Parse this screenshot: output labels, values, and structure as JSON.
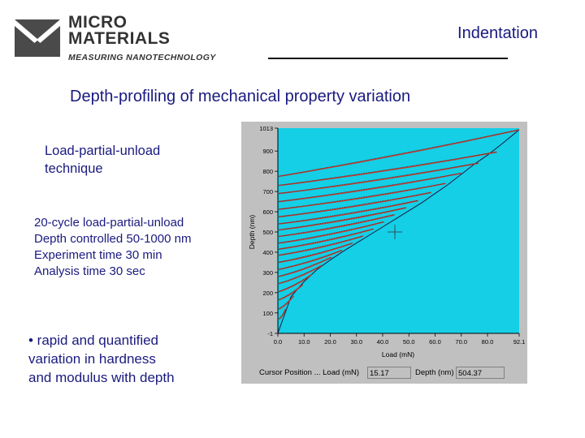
{
  "logo": {
    "line1": "MICRO",
    "line2": "MATERIALS",
    "tagline": "MEASURING NANOTECHNOLOGY"
  },
  "header": {
    "section": "Indentation"
  },
  "title": "Depth-profiling of mechanical property variation",
  "technique": [
    "Load-partial-unload",
    "technique"
  ],
  "params": [
    "20-cycle load-partial-unload",
    "Depth controlled 50-1000 nm",
    "Experiment time 30 min",
    "Analysis time 30 sec"
  ],
  "bullet": [
    "• rapid and quantified",
    "variation in hardness",
    "and modulus with depth"
  ],
  "colors": {
    "text": "#1a1a80",
    "plot_bg": "#14cfe6",
    "curve": "#c0392b",
    "panel": "#c0c0c0"
  },
  "status": {
    "cursor_label": "Cursor Position ... Load (mN)",
    "load_value": "15.17",
    "depth_label": "Depth (nm)",
    "depth_value": "504.37"
  },
  "chart_data": {
    "type": "line",
    "xlabel": "Load (mN)",
    "ylabel": "Depth (nm)",
    "xlim": [
      0.0,
      92.1
    ],
    "ylim": [
      -1,
      1013
    ],
    "x_ticks": [
      "0.0",
      "10.0",
      "20.0",
      "30.0",
      "40.0",
      "50.0",
      "60.0",
      "70.0",
      "80.0",
      "92.1"
    ],
    "y_ticks": [
      "-1",
      "100",
      "200",
      "300",
      "400",
      "500",
      "600",
      "700",
      "800",
      "900",
      "1013"
    ],
    "grid": false,
    "cycles": 20,
    "series": [
      {
        "x": [
          0,
          5,
          10,
          15,
          20,
          25,
          30,
          35,
          40,
          45,
          50,
          55,
          60,
          65,
          70,
          75,
          80,
          85,
          92.1
        ],
        "values": [
          0,
          180,
          255,
          315,
          362,
          405,
          445,
          485,
          525,
          565,
          605,
          645,
          690,
          735,
          785,
          835,
          880,
          930,
          1005
        ]
      }
    ],
    "unload_cycles": [
      {
        "load_max": 3.0,
        "depth_max": 120,
        "depth_min": 70
      },
      {
        "load_max": 6.0,
        "depth_max": 185,
        "depth_min": 120
      },
      {
        "load_max": 9.5,
        "depth_max": 240,
        "depth_min": 165
      },
      {
        "load_max": 13.0,
        "depth_max": 290,
        "depth_min": 205
      },
      {
        "load_max": 16.8,
        "depth_max": 335,
        "depth_min": 245
      },
      {
        "load_max": 20.5,
        "depth_max": 375,
        "depth_min": 280
      },
      {
        "load_max": 24.5,
        "depth_max": 410,
        "depth_min": 315
      },
      {
        "load_max": 28.5,
        "depth_max": 445,
        "depth_min": 350
      },
      {
        "load_max": 32.5,
        "depth_max": 480,
        "depth_min": 385
      },
      {
        "load_max": 36.5,
        "depth_max": 515,
        "depth_min": 415
      },
      {
        "load_max": 40.5,
        "depth_max": 550,
        "depth_min": 445
      },
      {
        "load_max": 44.5,
        "depth_max": 585,
        "depth_min": 478
      },
      {
        "load_max": 49.0,
        "depth_max": 620,
        "depth_min": 510
      },
      {
        "load_max": 53.5,
        "depth_max": 655,
        "depth_min": 540
      },
      {
        "load_max": 58.5,
        "depth_max": 695,
        "depth_min": 575
      },
      {
        "load_max": 64.0,
        "depth_max": 740,
        "depth_min": 612
      },
      {
        "load_max": 70.0,
        "depth_max": 790,
        "depth_min": 650
      },
      {
        "load_max": 76.5,
        "depth_max": 840,
        "depth_min": 690
      },
      {
        "load_max": 83.5,
        "depth_max": 895,
        "depth_min": 730
      },
      {
        "load_max": 92.1,
        "depth_max": 1005,
        "depth_min": 775
      }
    ]
  }
}
